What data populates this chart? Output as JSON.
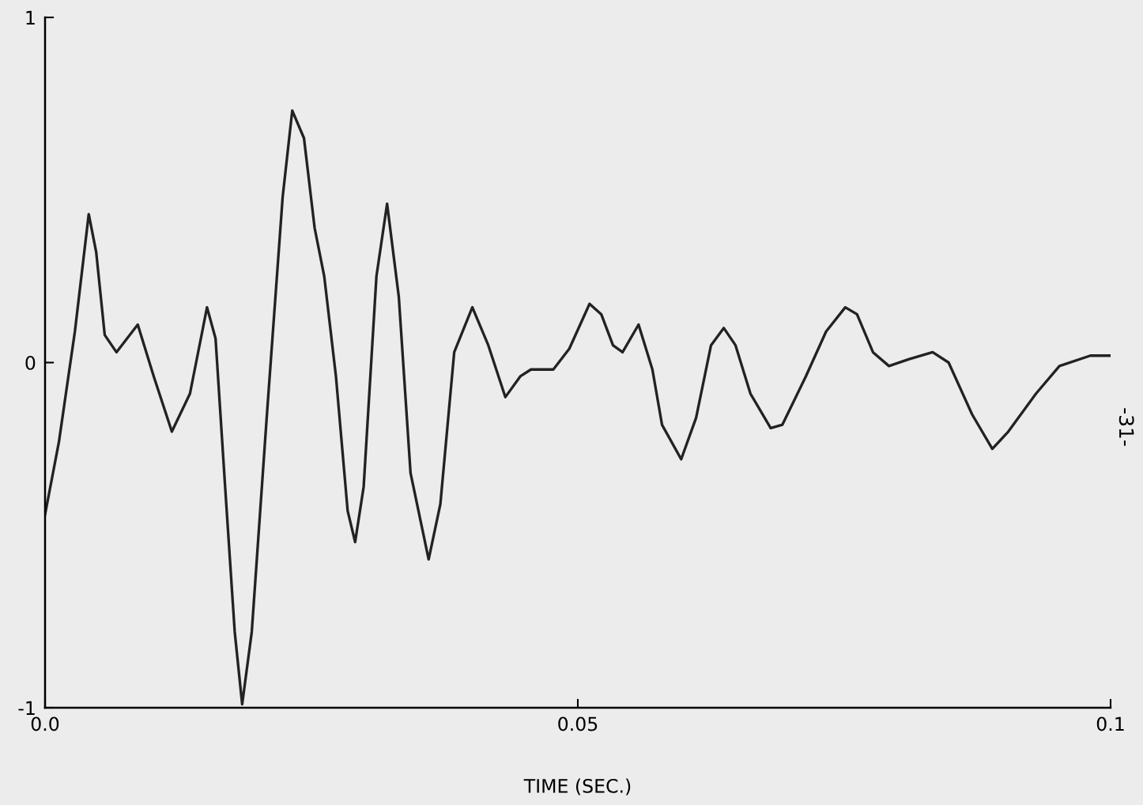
{
  "chart_data": {
    "type": "line",
    "xlabel": "TIME (SEC.)",
    "annotations": [
      "-31-"
    ],
    "x": [
      0,
      0.0013,
      0.0028,
      0.0041,
      0.0048,
      0.0056,
      0.0067,
      0.0087,
      0.0102,
      0.0119,
      0.0136,
      0.0152,
      0.016,
      0.0169,
      0.0178,
      0.0185,
      0.0194,
      0.0208,
      0.0223,
      0.0232,
      0.0243,
      0.0253,
      0.0262,
      0.0273,
      0.0284,
      0.0291,
      0.0299,
      0.0311,
      0.0321,
      0.0332,
      0.0343,
      0.036,
      0.0371,
      0.0384,
      0.0401,
      0.0416,
      0.0432,
      0.0446,
      0.0456,
      0.0477,
      0.0492,
      0.0511,
      0.0522,
      0.0533,
      0.0542,
      0.0557,
      0.057,
      0.0579,
      0.0597,
      0.0611,
      0.0625,
      0.0637,
      0.0648,
      0.0662,
      0.0681,
      0.0692,
      0.0714,
      0.0733,
      0.0751,
      0.0762,
      0.0777,
      0.0792,
      0.0811,
      0.0833,
      0.0848,
      0.087,
      0.0889,
      0.0904,
      0.093,
      0.0952,
      0.0981,
      0.1
    ],
    "series": [
      {
        "color": "#222222",
        "values": [
          -0.44,
          -0.23,
          0.09,
          0.43,
          0.32,
          0.08,
          0.03,
          0.11,
          -0.04,
          -0.2,
          -0.09,
          0.16,
          0.07,
          -0.36,
          -0.78,
          -0.99,
          -0.78,
          -0.16,
          0.48,
          0.73,
          0.65,
          0.39,
          0.25,
          -0.04,
          -0.43,
          -0.52,
          -0.36,
          0.25,
          0.46,
          0.19,
          -0.32,
          -0.57,
          -0.41,
          0.03,
          0.16,
          0.05,
          -0.1,
          -0.04,
          -0.02,
          -0.02,
          0.04,
          0.17,
          0.14,
          0.05,
          0.03,
          0.11,
          -0.02,
          -0.18,
          -0.28,
          -0.16,
          0.05,
          0.1,
          0.05,
          -0.09,
          -0.19,
          -0.18,
          -0.04,
          0.09,
          0.16,
          0.14,
          0.03,
          -0.01,
          0.01,
          0.03,
          0.0,
          -0.15,
          -0.25,
          -0.2,
          -0.09,
          -0.01,
          0.02,
          0.02
        ]
      }
    ],
    "xlim": [
      0,
      0.1
    ],
    "xticks": [
      {
        "value": 0,
        "label": "0.0"
      },
      0.05,
      0.1
    ],
    "ylim": [
      -1,
      1
    ],
    "yticks": [
      -1,
      0,
      1
    ],
    "grid": false,
    "legend": false,
    "marker": "none",
    "line_style": "solid"
  }
}
